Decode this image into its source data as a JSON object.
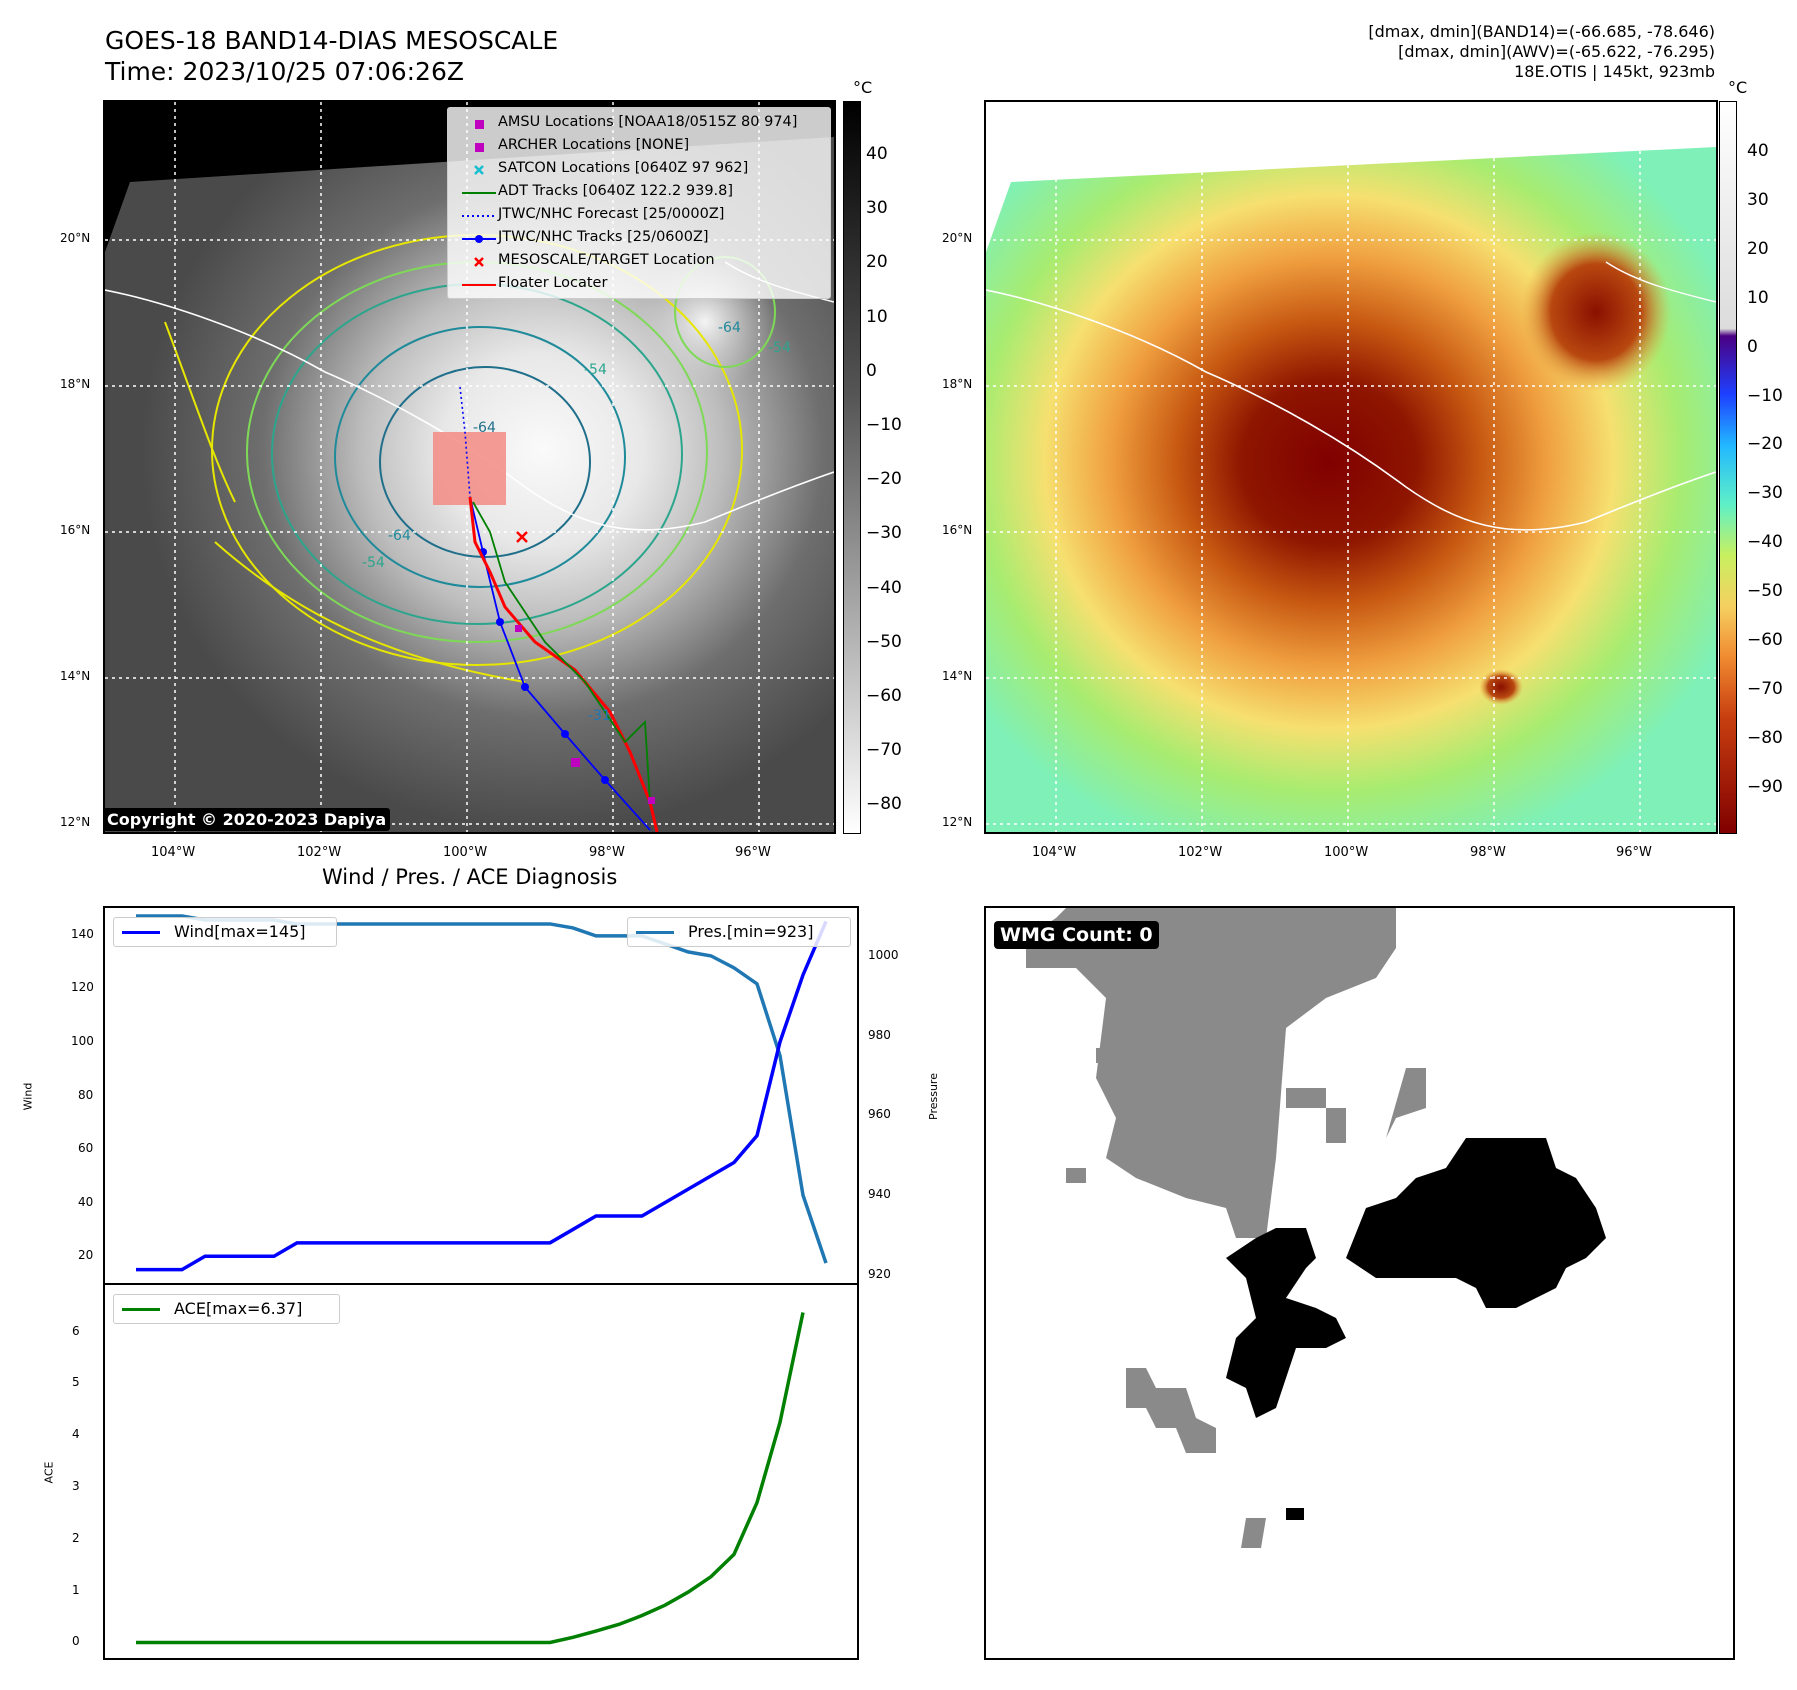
{
  "header": {
    "title_line1": "GOES-18 BAND14-DIAS MESOSCALE",
    "title_line2": "Time: 2023/10/25 07:06:26Z",
    "right_line1": "[dmax, dmin](BAND14)=(-66.685, -78.646)",
    "right_line2": "[dmax, dmin](AWV)=(-65.622, -76.295)",
    "right_line3": "18E.OTIS | 145kt, 923mb"
  },
  "map": {
    "lat_labels": [
      "20°N",
      "18°N",
      "16°N",
      "14°N",
      "12°N"
    ],
    "lon_labels": [
      "104°W",
      "102°W",
      "100°W",
      "98°W",
      "96°W"
    ],
    "contour_labels": [
      "-64",
      "-54",
      "-64",
      "-54",
      "-54",
      "-31",
      "-64"
    ]
  },
  "colorbar_left": {
    "unit": "°C",
    "ticks": [
      "40",
      "30",
      "20",
      "10",
      "0",
      "−10",
      "−20",
      "−30",
      "−40",
      "−50",
      "−60",
      "−70",
      "−80"
    ]
  },
  "colorbar_right": {
    "unit": "°C",
    "ticks": [
      "40",
      "30",
      "20",
      "10",
      "0",
      "−10",
      "−20",
      "−30",
      "−40",
      "−50",
      "−60",
      "−70",
      "−80",
      "−90"
    ]
  },
  "legend": [
    {
      "label": "AMSU Locations [NOAA18/0515Z 80 974]",
      "symbol": "square",
      "color": "#bf00bf"
    },
    {
      "label": "ARCHER Locations [NONE]",
      "symbol": "square",
      "color": "#bf00bf"
    },
    {
      "label": "SATCON Locations [0640Z 97 962]",
      "symbol": "x",
      "color": "#17becf"
    },
    {
      "label": "ADT Tracks [0640Z 122.2 939.8]",
      "symbol": "line",
      "color": "#008000"
    },
    {
      "label": "JTWC/NHC Forecast [25/0000Z]",
      "symbol": "dotted",
      "color": "#0000ff"
    },
    {
      "label": "JTWC/NHC Tracks [25/0600Z]",
      "symbol": "line-dot",
      "color": "#0000ff"
    },
    {
      "label": "MESOSCALE/TARGET Location",
      "symbol": "x",
      "color": "#ff0000"
    },
    {
      "label": "Floater Locater",
      "symbol": "line",
      "color": "#ff0000"
    }
  ],
  "copyright": "Copyright © 2020-2023 Dapiya",
  "wmg_label": "WMG Count: 0",
  "diagnosis_title": "Wind / Pres. / ACE Diagnosis",
  "chart_data": [
    {
      "type": "line",
      "title": "Wind / Pres. / ACE Diagnosis",
      "ylabel": "Wind",
      "y2label": "Pressure",
      "ylim": [
        10,
        150
      ],
      "y2lim": [
        918,
        1012
      ],
      "yticks": [
        20,
        40,
        60,
        80,
        100,
        120,
        140
      ],
      "y2ticks": [
        920,
        940,
        960,
        980,
        1000
      ],
      "x": [
        0,
        1,
        2,
        3,
        4,
        5,
        6,
        7,
        8,
        9,
        10,
        11,
        12,
        13,
        14,
        15,
        16,
        17,
        18,
        19,
        20,
        21,
        22,
        23,
        24,
        25,
        26,
        27,
        28,
        29,
        30
      ],
      "series": [
        {
          "name": "Wind[max=145]",
          "axis": "left",
          "color": "#0000ff",
          "values": [
            15,
            15,
            15,
            20,
            20,
            20,
            20,
            25,
            25,
            25,
            25,
            25,
            25,
            25,
            25,
            25,
            25,
            25,
            25,
            30,
            35,
            35,
            35,
            40,
            45,
            50,
            55,
            65,
            100,
            125,
            145
          ]
        },
        {
          "name": "Pres.[min=923]",
          "axis": "right",
          "color": "#1f77b4",
          "values": [
            1010,
            1010,
            1010,
            1009,
            1009,
            1009,
            1009,
            1008,
            1008,
            1008,
            1008,
            1008,
            1008,
            1008,
            1008,
            1008,
            1008,
            1008,
            1008,
            1007,
            1005,
            1005,
            1005,
            1003,
            1001,
            1000,
            997,
            993,
            975,
            940,
            923
          ]
        }
      ]
    },
    {
      "type": "line",
      "ylabel": "ACE",
      "ylim": [
        -0.3,
        6.9
      ],
      "yticks": [
        0,
        1,
        2,
        3,
        4,
        5,
        6
      ],
      "x": [
        0,
        1,
        2,
        3,
        4,
        5,
        6,
        7,
        8,
        9,
        10,
        11,
        12,
        13,
        14,
        15,
        16,
        17,
        18,
        19,
        20,
        21,
        22,
        23,
        24,
        25,
        26,
        27,
        28,
        29,
        30
      ],
      "series": [
        {
          "name": "ACE[max=6.37]",
          "color": "#008000",
          "values": [
            0,
            0,
            0,
            0,
            0,
            0,
            0,
            0,
            0,
            0,
            0,
            0,
            0,
            0,
            0,
            0,
            0,
            0,
            0,
            0.1,
            0.22,
            0.35,
            0.52,
            0.72,
            0.97,
            1.27,
            1.7,
            2.7,
            4.25,
            6.37,
            6.37
          ]
        }
      ]
    }
  ]
}
